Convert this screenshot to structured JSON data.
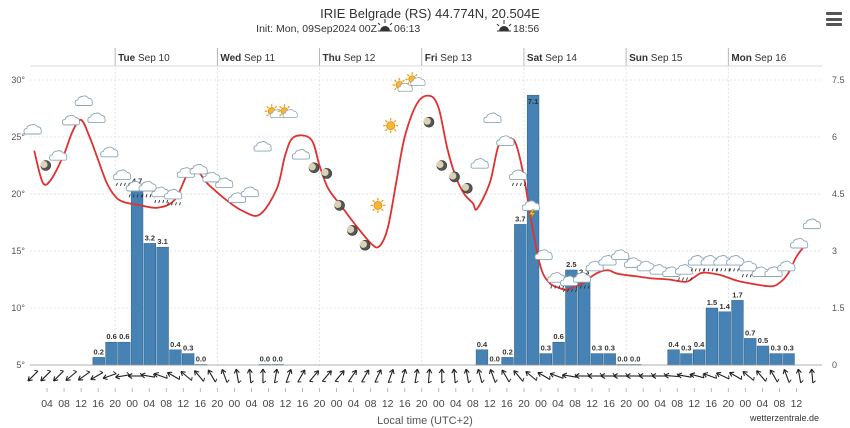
{
  "chart_data": {
    "type": "bar+line",
    "title": "IRIE Belgrade (RS) 44.774N, 20.504E",
    "init_text": "Init: Mon, 09Sep2024 00Z",
    "sunrise": "06:13",
    "sunset": "18:56",
    "x_axis_label": "Local time (UTC+2)",
    "credit": "wetterzentrale.de",
    "left_axis": {
      "ticks": [
        "5°",
        "10°",
        "15°",
        "20°",
        "25°",
        "30°"
      ],
      "range": [
        5,
        30
      ]
    },
    "right_axis": {
      "ticks": [
        "0",
        "1.5",
        "3",
        "4.5",
        "6",
        "7.5"
      ],
      "range": [
        0,
        7.5
      ]
    },
    "days": [
      {
        "dow": "Tue",
        "date": "Sep 10"
      },
      {
        "dow": "Wed",
        "date": "Sep 11"
      },
      {
        "dow": "Thu",
        "date": "Sep 12"
      },
      {
        "dow": "Fri",
        "date": "Sep 13"
      },
      {
        "dow": "Sat",
        "date": "Sep 14"
      },
      {
        "dow": "Sun",
        "date": "Sep 15"
      },
      {
        "dow": "Mon",
        "date": "Sep 16"
      }
    ],
    "hour_labels": [
      "04",
      "08",
      "12",
      "16",
      "20",
      "00",
      "04",
      "08",
      "12",
      "16",
      "20",
      "00",
      "04",
      "08",
      "12",
      "16",
      "20",
      "00",
      "04",
      "08",
      "12",
      "16",
      "20",
      "00",
      "04",
      "08",
      "12",
      "16",
      "20",
      "00",
      "04",
      "08",
      "12",
      "16",
      "20",
      "00",
      "04",
      "08",
      "12",
      "16",
      "20",
      "00",
      "04",
      "08",
      "12"
    ],
    "precipitation": [
      {
        "h": 15,
        "v": 0.2,
        "label": "0.2"
      },
      {
        "h": 18,
        "v": 0.6,
        "label": "0.6"
      },
      {
        "h": 21,
        "v": 0.6,
        "label": "0.6"
      },
      {
        "h": 24,
        "v": 4.7,
        "label": "4.7"
      },
      {
        "h": 27,
        "v": 3.2,
        "label": "3.2"
      },
      {
        "h": 30,
        "v": 3.1,
        "label": "3.1"
      },
      {
        "h": 33,
        "v": 0.4,
        "label": "0.4"
      },
      {
        "h": 36,
        "v": 0.3,
        "label": "0.3"
      },
      {
        "h": 39,
        "v": 0.0,
        "label": "0.0"
      },
      {
        "h": 54,
        "v": 0.0,
        "label": "0.0"
      },
      {
        "h": 57,
        "v": 0.0,
        "label": "0.0"
      },
      {
        "h": 105,
        "v": 0.4,
        "label": "0.4"
      },
      {
        "h": 108,
        "v": 0.0,
        "label": "0.0"
      },
      {
        "h": 111,
        "v": 0.2,
        "label": "0.2"
      },
      {
        "h": 114,
        "v": 3.7,
        "label": "3.7"
      },
      {
        "h": 117,
        "v": 7.1,
        "label": "7.1"
      },
      {
        "h": 120,
        "v": 0.3,
        "label": "0.3"
      },
      {
        "h": 123,
        "v": 0.6,
        "label": "0.6"
      },
      {
        "h": 126,
        "v": 2.5,
        "label": "2.5"
      },
      {
        "h": 129,
        "v": 2.3,
        "label": "2.3"
      },
      {
        "h": 132,
        "v": 0.3,
        "label": "0.3"
      },
      {
        "h": 135,
        "v": 0.3,
        "label": "0.3"
      },
      {
        "h": 138,
        "v": 0.0,
        "label": "0.0"
      },
      {
        "h": 141,
        "v": 0.0,
        "label": "0.0"
      },
      {
        "h": 150,
        "v": 0.4,
        "label": "0.4"
      },
      {
        "h": 153,
        "v": 0.3,
        "label": "0.3"
      },
      {
        "h": 156,
        "v": 0.4,
        "label": "0.4"
      },
      {
        "h": 159,
        "v": 1.5,
        "label": "1.5"
      },
      {
        "h": 162,
        "v": 1.4,
        "label": "1.4"
      },
      {
        "h": 165,
        "v": 1.7,
        "label": "1.7"
      },
      {
        "h": 168,
        "v": 0.7,
        "label": "0.7"
      },
      {
        "h": 171,
        "v": 0.5,
        "label": "0.5"
      },
      {
        "h": 174,
        "v": 0.3,
        "label": "0.3"
      },
      {
        "h": 177,
        "v": 0.3,
        "label": "0.3"
      }
    ],
    "temperature": [
      [
        1,
        23.8
      ],
      [
        3,
        21.0
      ],
      [
        5,
        21.3
      ],
      [
        8,
        23.5
      ],
      [
        10,
        25.5
      ],
      [
        12,
        26.5
      ],
      [
        14,
        25.0
      ],
      [
        16,
        23.0
      ],
      [
        18,
        21.0
      ],
      [
        20,
        19.8
      ],
      [
        22,
        19.3
      ],
      [
        26,
        19.0
      ],
      [
        30,
        18.8
      ],
      [
        34,
        19.5
      ],
      [
        38,
        22.2
      ],
      [
        42,
        20.8
      ],
      [
        46,
        19.5
      ],
      [
        50,
        18.5
      ],
      [
        54,
        18.2
      ],
      [
        58,
        20.5
      ],
      [
        60,
        23.5
      ],
      [
        62,
        25.0
      ],
      [
        66,
        24.8
      ],
      [
        68,
        22.5
      ],
      [
        70,
        20.5
      ],
      [
        73,
        19.0
      ],
      [
        76,
        17.5
      ],
      [
        80,
        15.7
      ],
      [
        82,
        15.4
      ],
      [
        84,
        17.0
      ],
      [
        86,
        21.0
      ],
      [
        88,
        25.0
      ],
      [
        91,
        28.0
      ],
      [
        94,
        28.6
      ],
      [
        96,
        27.5
      ],
      [
        98,
        24.0
      ],
      [
        100,
        21.5
      ],
      [
        102,
        20.0
      ],
      [
        104,
        19.2
      ],
      [
        105,
        18.7
      ],
      [
        108,
        21.0
      ],
      [
        110,
        24.2
      ],
      [
        112,
        24.8
      ],
      [
        114,
        24.5
      ],
      [
        116,
        21.5
      ],
      [
        118,
        17.0
      ],
      [
        120,
        13.5
      ],
      [
        122,
        12.2
      ],
      [
        124,
        11.8
      ],
      [
        126,
        11.6
      ],
      [
        128,
        11.9
      ],
      [
        130,
        12.2
      ],
      [
        132,
        12.8
      ],
      [
        134,
        13.2
      ],
      [
        136,
        13.3
      ],
      [
        138,
        13.0
      ],
      [
        142,
        12.8
      ],
      [
        146,
        12.6
      ],
      [
        150,
        12.5
      ],
      [
        154,
        12.3
      ],
      [
        156,
        12.7
      ],
      [
        158,
        13.1
      ],
      [
        162,
        12.9
      ],
      [
        166,
        12.4
      ],
      [
        170,
        12.1
      ],
      [
        174,
        11.9
      ],
      [
        176,
        12.2
      ],
      [
        178,
        13.0
      ],
      [
        180,
        14.5
      ],
      [
        182,
        15.5
      ]
    ],
    "symbols": [
      {
        "h": 0,
        "t": 25.5,
        "type": "cloud"
      },
      {
        "h": 3,
        "t": 22.5,
        "type": "moon"
      },
      {
        "h": 6,
        "t": 23.2,
        "type": "cloud"
      },
      {
        "h": 9,
        "t": 26.3,
        "type": "cloud"
      },
      {
        "h": 12,
        "t": 28.0,
        "type": "cloud"
      },
      {
        "h": 15,
        "t": 26.5,
        "type": "cloud"
      },
      {
        "h": 18,
        "t": 23.5,
        "type": "cloud"
      },
      {
        "h": 21,
        "t": 21.5,
        "type": "cloud-rain"
      },
      {
        "h": 24,
        "t": 20.5,
        "type": "cloud-rain"
      },
      {
        "h": 27,
        "t": 20.5,
        "type": "cloud-rain"
      },
      {
        "h": 30,
        "t": 20.0,
        "type": "cloud-rain"
      },
      {
        "h": 33,
        "t": 19.8,
        "type": "cloud-rain"
      },
      {
        "h": 36,
        "t": 21.7,
        "type": "cloud"
      },
      {
        "h": 39,
        "t": 22.0,
        "type": "cloud"
      },
      {
        "h": 42,
        "t": 21.3,
        "type": "cloud"
      },
      {
        "h": 45,
        "t": 20.8,
        "type": "cloud"
      },
      {
        "h": 48,
        "t": 19.5,
        "type": "cloud"
      },
      {
        "h": 51,
        "t": 20.0,
        "type": "cloud"
      },
      {
        "h": 54,
        "t": 24.0,
        "type": "cloud"
      },
      {
        "h": 57,
        "t": 27.0,
        "type": "sun-cloud"
      },
      {
        "h": 60,
        "t": 27.0,
        "type": "sun-cloud"
      },
      {
        "h": 63,
        "t": 23.3,
        "type": "cloud"
      },
      {
        "h": 66,
        "t": 22.3,
        "type": "moon"
      },
      {
        "h": 69,
        "t": 21.8,
        "type": "moon"
      },
      {
        "h": 72,
        "t": 19.0,
        "type": "moon"
      },
      {
        "h": 75,
        "t": 16.8,
        "type": "moon"
      },
      {
        "h": 78,
        "t": 15.5,
        "type": "moon"
      },
      {
        "h": 81,
        "t": 19.0,
        "type": "sun"
      },
      {
        "h": 84,
        "t": 26.0,
        "type": "sun"
      },
      {
        "h": 87,
        "t": 29.3,
        "type": "sun-cloud"
      },
      {
        "h": 90,
        "t": 29.8,
        "type": "sun-cloud"
      },
      {
        "h": 93,
        "t": 26.3,
        "type": "moon"
      },
      {
        "h": 96,
        "t": 22.5,
        "type": "moon"
      },
      {
        "h": 99,
        "t": 21.5,
        "type": "moon"
      },
      {
        "h": 102,
        "t": 20.5,
        "type": "moon"
      },
      {
        "h": 105,
        "t": 22.5,
        "type": "cloud"
      },
      {
        "h": 108,
        "t": 26.5,
        "type": "cloud"
      },
      {
        "h": 111,
        "t": 24.5,
        "type": "cloud"
      },
      {
        "h": 114,
        "t": 21.5,
        "type": "cloud-rain"
      },
      {
        "h": 117,
        "t": 18.8,
        "type": "thunder"
      },
      {
        "h": 120,
        "t": 14.5,
        "type": "cloud"
      },
      {
        "h": 123,
        "t": 12.5,
        "type": "cloud-rain"
      },
      {
        "h": 126,
        "t": 12.2,
        "type": "cloud-rain"
      },
      {
        "h": 129,
        "t": 12.5,
        "type": "cloud-rain"
      },
      {
        "h": 132,
        "t": 13.5,
        "type": "cloud"
      },
      {
        "h": 135,
        "t": 14.0,
        "type": "cloud"
      },
      {
        "h": 138,
        "t": 14.5,
        "type": "cloud"
      },
      {
        "h": 141,
        "t": 13.8,
        "type": "cloud"
      },
      {
        "h": 144,
        "t": 13.5,
        "type": "cloud"
      },
      {
        "h": 147,
        "t": 13.2,
        "type": "cloud"
      },
      {
        "h": 150,
        "t": 13.0,
        "type": "cloud"
      },
      {
        "h": 153,
        "t": 13.2,
        "type": "cloud-rain"
      },
      {
        "h": 156,
        "t": 14.0,
        "type": "cloud-rain"
      },
      {
        "h": 159,
        "t": 14.0,
        "type": "cloud-rain"
      },
      {
        "h": 162,
        "t": 14.0,
        "type": "cloud-rain"
      },
      {
        "h": 165,
        "t": 14.0,
        "type": "cloud-rain"
      },
      {
        "h": 168,
        "t": 13.5,
        "type": "cloud-rain"
      },
      {
        "h": 171,
        "t": 13.0,
        "type": "cloud"
      },
      {
        "h": 174,
        "t": 13.0,
        "type": "cloud"
      },
      {
        "h": 177,
        "t": 13.5,
        "type": "cloud"
      },
      {
        "h": 180,
        "t": 15.5,
        "type": "cloud"
      },
      {
        "h": 183,
        "t": 17.2,
        "type": "cloud"
      }
    ],
    "wind_direction_deg": [
      225,
      225,
      225,
      230,
      235,
      240,
      250,
      260,
      270,
      280,
      290,
      300,
      310,
      320,
      330,
      340,
      350,
      355,
      0,
      10,
      20,
      30,
      40,
      40,
      40,
      35,
      30,
      25,
      20,
      15,
      10,
      5,
      0,
      355,
      350,
      345,
      340,
      330,
      320,
      310,
      300,
      290,
      280,
      270,
      270,
      270,
      270,
      270,
      270,
      270,
      275,
      280,
      285,
      290,
      295,
      300,
      310,
      320,
      330,
      340,
      350,
      355
    ]
  }
}
